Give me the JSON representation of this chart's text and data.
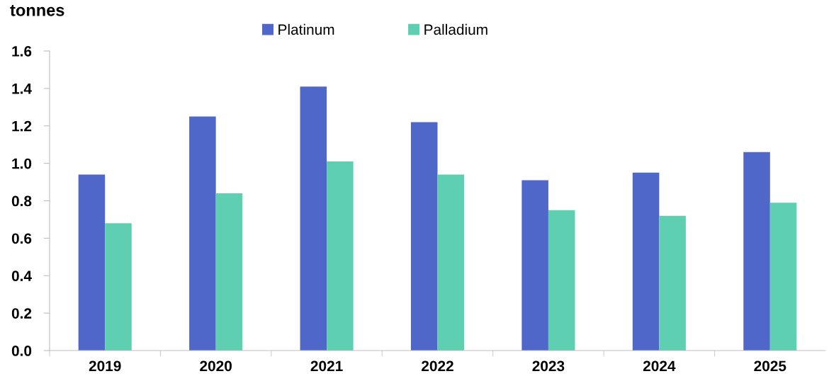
{
  "chart_data": {
    "type": "bar",
    "ylabel": "tonnes",
    "categories": [
      "2019",
      "2020",
      "2021",
      "2022",
      "2023",
      "2024",
      "2025"
    ],
    "series": [
      {
        "name": "Platinum",
        "color": "#4f67c9",
        "values": [
          0.94,
          1.25,
          1.41,
          1.22,
          0.91,
          0.95,
          1.06
        ]
      },
      {
        "name": "Palladium",
        "color": "#5ecfb1",
        "values": [
          0.68,
          0.84,
          1.01,
          0.94,
          0.75,
          0.72,
          0.79
        ]
      }
    ],
    "ylim": [
      0,
      1.6
    ],
    "yticks": [
      {
        "value": 0,
        "label": "0.0"
      },
      {
        "value": 0.2,
        "label": "0.2"
      },
      {
        "value": 0.4,
        "label": "0.4"
      },
      {
        "value": 0.6,
        "label": "0.6"
      },
      {
        "value": 0.8,
        "label": "0.8"
      },
      {
        "value": 1.0,
        "label": "1.0"
      },
      {
        "value": 1.2,
        "label": "1.2"
      },
      {
        "value": 1.4,
        "label": "1.4"
      },
      {
        "value": 1.6,
        "label": "1.6"
      }
    ],
    "grid": false,
    "legend": "top"
  }
}
